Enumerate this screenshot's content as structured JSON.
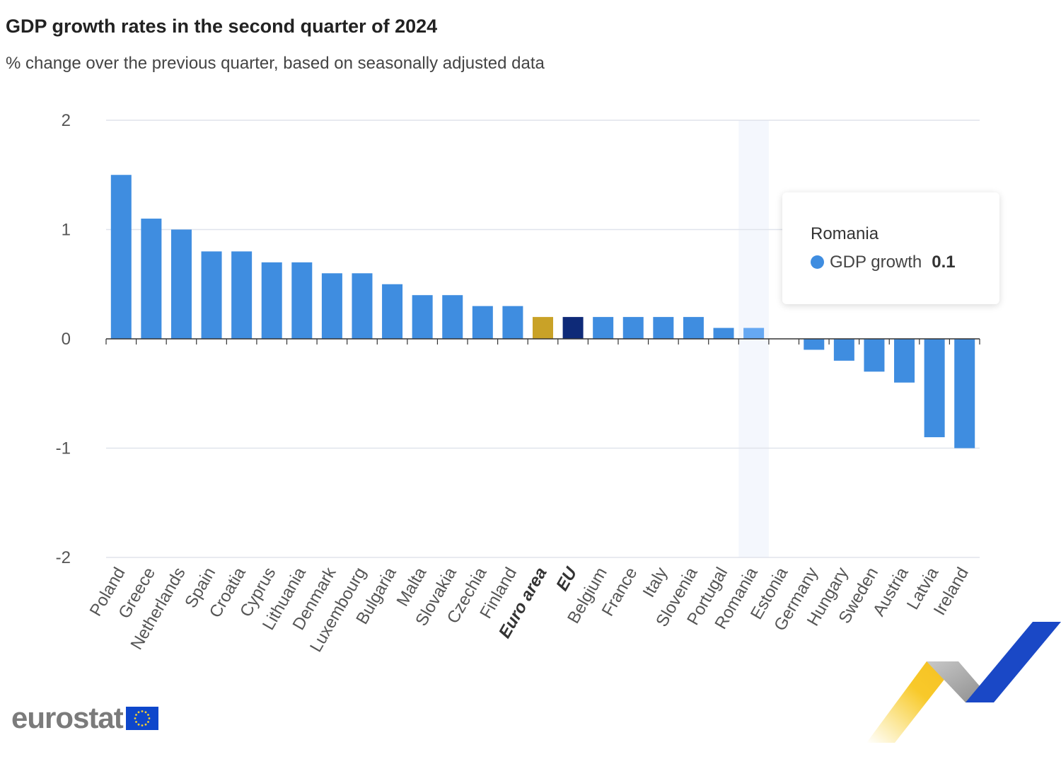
{
  "title": "GDP growth rates in the second quarter of 2024",
  "subtitle": "% change over the previous quarter, based on seasonally adjusted data",
  "tooltip": {
    "country": "Romania",
    "series": "GDP growth",
    "value": "0.1"
  },
  "logo": {
    "text": "eurostat"
  },
  "colors": {
    "bar": "#3f8de0",
    "euro_area": "#c9a227",
    "eu": "#0e2a78",
    "highlight": "#66a8f2",
    "highlight_band": "#f4f7fd",
    "grid": "#e0e4ec"
  },
  "chart_data": {
    "type": "bar",
    "title": "GDP growth rates in the second quarter of 2024",
    "subtitle": "% change over the previous quarter, based on seasonally adjusted data",
    "ylim": [
      -2,
      2
    ],
    "yticks": [
      "2",
      "1",
      "0",
      "-1",
      "-2"
    ],
    "ytick_values": [
      2,
      1,
      0,
      -1,
      -2
    ],
    "grid": true,
    "highlighted": "Romania",
    "bold_categories": [
      "Euro area",
      "EU"
    ],
    "categories": [
      "Poland",
      "Greece",
      "Netherlands",
      "Spain",
      "Croatia",
      "Cyprus",
      "Lithuania",
      "Denmark",
      "Luxembourg",
      "Bulgaria",
      "Malta",
      "Slovakia",
      "Czechia",
      "Finland",
      "Euro area",
      "EU",
      "Belgium",
      "France",
      "Italy",
      "Slovenia",
      "Portugal",
      "Romania",
      "Estonia",
      "Germany",
      "Hungary",
      "Sweden",
      "Austria",
      "Latvia",
      "Ireland"
    ],
    "series": [
      {
        "name": "GDP growth",
        "values": [
          1.5,
          1.1,
          1.0,
          0.8,
          0.8,
          0.7,
          0.7,
          0.6,
          0.6,
          0.5,
          0.4,
          0.4,
          0.3,
          0.3,
          0.2,
          0.2,
          0.2,
          0.2,
          0.2,
          0.2,
          0.1,
          0.1,
          0.0,
          -0.1,
          -0.2,
          -0.3,
          -0.4,
          -0.9,
          -1.0
        ]
      }
    ]
  }
}
